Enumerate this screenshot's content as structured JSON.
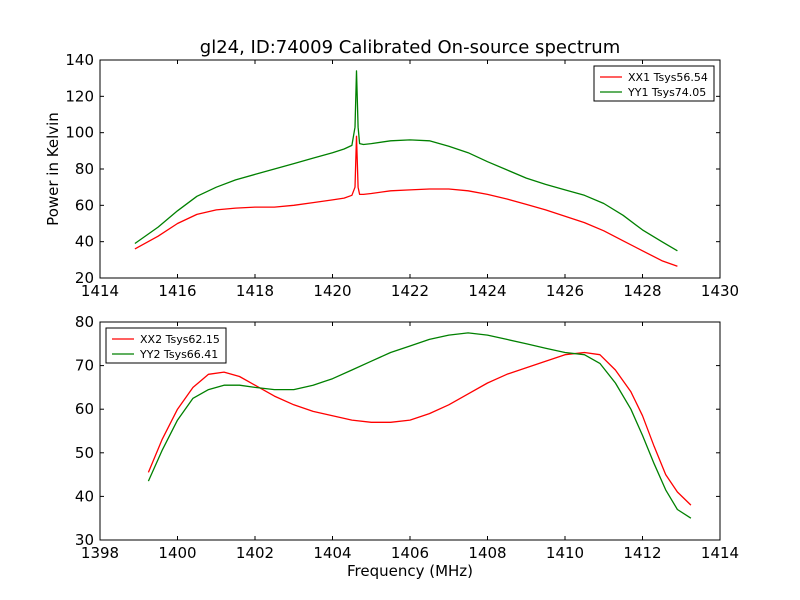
{
  "figure": {
    "title": "gl24, ID:74009 Calibrated On-source spectrum",
    "xlabel": "Frequency (MHz)"
  },
  "chart_data": [
    {
      "type": "line",
      "title": "gl24, ID:74009 Calibrated On-source spectrum",
      "xlabel": "",
      "ylabel": "Power in Kelvin",
      "xlim": [
        1414,
        1430
      ],
      "ylim": [
        20,
        140
      ],
      "xticks": [
        1414,
        1416,
        1418,
        1420,
        1422,
        1424,
        1426,
        1428,
        1430
      ],
      "yticks": [
        20,
        40,
        60,
        80,
        100,
        120,
        140
      ],
      "grid": false,
      "legend_position": "top-right",
      "series": [
        {
          "name": "XX1 Tsys56.54",
          "color": "#ff0000",
          "x": [
            1414.9,
            1415.5,
            1416.0,
            1416.5,
            1417.0,
            1417.5,
            1418.0,
            1418.5,
            1419.0,
            1419.5,
            1420.0,
            1420.3,
            1420.5,
            1420.58,
            1420.62,
            1420.66,
            1420.7,
            1420.8,
            1421.0,
            1421.5,
            1422.0,
            1422.5,
            1423.0,
            1423.5,
            1424.0,
            1424.5,
            1425.0,
            1425.5,
            1426.0,
            1426.5,
            1427.0,
            1427.5,
            1428.0,
            1428.5,
            1428.9
          ],
          "y": [
            36,
            43,
            50,
            55,
            57.5,
            58.5,
            59,
            59,
            60,
            61.5,
            63,
            64,
            65.5,
            70,
            98,
            70,
            66,
            66,
            66.5,
            68,
            68.5,
            69,
            69,
            68,
            66,
            63.5,
            60.5,
            57.5,
            54,
            50.5,
            46,
            40.5,
            35,
            29.5,
            26.5
          ]
        },
        {
          "name": "YY1 Tsys74.05",
          "color": "#008000",
          "x": [
            1414.9,
            1415.5,
            1416.0,
            1416.5,
            1417.0,
            1417.5,
            1418.0,
            1418.5,
            1419.0,
            1419.5,
            1420.0,
            1420.3,
            1420.5,
            1420.58,
            1420.62,
            1420.66,
            1420.7,
            1420.8,
            1421.0,
            1421.5,
            1422.0,
            1422.5,
            1423.0,
            1423.5,
            1424.0,
            1424.5,
            1425.0,
            1425.5,
            1426.0,
            1426.5,
            1427.0,
            1427.5,
            1428.0,
            1428.5,
            1428.9
          ],
          "y": [
            39,
            48,
            57,
            65,
            70,
            74,
            77,
            80,
            83,
            86,
            89,
            91,
            93,
            103,
            134,
            103,
            94,
            93.5,
            94,
            95.5,
            96,
            95.5,
            92.5,
            89,
            84,
            79.5,
            75,
            71.5,
            68.5,
            65.5,
            61,
            54.5,
            46.5,
            40,
            35
          ]
        }
      ]
    },
    {
      "type": "line",
      "title": "",
      "xlabel": "Frequency (MHz)",
      "ylabel": "",
      "xlim": [
        1398,
        1414
      ],
      "ylim": [
        30,
        80
      ],
      "xticks": [
        1398,
        1400,
        1402,
        1404,
        1406,
        1408,
        1410,
        1412,
        1414
      ],
      "yticks": [
        30,
        40,
        50,
        60,
        70,
        80
      ],
      "grid": false,
      "legend_position": "top-left",
      "series": [
        {
          "name": "XX2 Tsys62.15",
          "color": "#ff0000",
          "x": [
            1399.25,
            1399.6,
            1400.0,
            1400.4,
            1400.8,
            1401.2,
            1401.6,
            1402.0,
            1402.5,
            1403.0,
            1403.5,
            1404.0,
            1404.5,
            1405.0,
            1405.5,
            1406.0,
            1406.5,
            1407.0,
            1407.5,
            1408.0,
            1408.5,
            1409.0,
            1409.5,
            1410.0,
            1410.5,
            1410.9,
            1411.3,
            1411.7,
            1412.0,
            1412.3,
            1412.6,
            1412.9,
            1413.25
          ],
          "y": [
            45.5,
            53,
            60,
            65,
            68,
            68.5,
            67.5,
            65.5,
            63,
            61,
            59.5,
            58.5,
            57.5,
            57,
            57,
            57.5,
            59,
            61,
            63.5,
            66,
            68,
            69.5,
            71,
            72.5,
            73,
            72.5,
            69,
            64,
            58.5,
            51.5,
            45,
            41,
            38
          ]
        },
        {
          "name": "YY2 Tsys66.41",
          "color": "#008000",
          "x": [
            1399.25,
            1399.6,
            1400.0,
            1400.4,
            1400.8,
            1401.2,
            1401.6,
            1402.0,
            1402.5,
            1403.0,
            1403.5,
            1404.0,
            1404.5,
            1405.0,
            1405.5,
            1406.0,
            1406.5,
            1407.0,
            1407.5,
            1408.0,
            1408.5,
            1409.0,
            1409.5,
            1410.0,
            1410.5,
            1410.9,
            1411.3,
            1411.7,
            1412.0,
            1412.3,
            1412.6,
            1412.9,
            1413.25
          ],
          "y": [
            43.5,
            50.5,
            57.5,
            62.5,
            64.5,
            65.5,
            65.5,
            65,
            64.5,
            64.5,
            65.5,
            67,
            69,
            71,
            73,
            74.5,
            76,
            77,
            77.5,
            77,
            76,
            75,
            74,
            73,
            72.5,
            70.5,
            66,
            60,
            54,
            47.5,
            41.5,
            37,
            35
          ]
        }
      ]
    }
  ]
}
